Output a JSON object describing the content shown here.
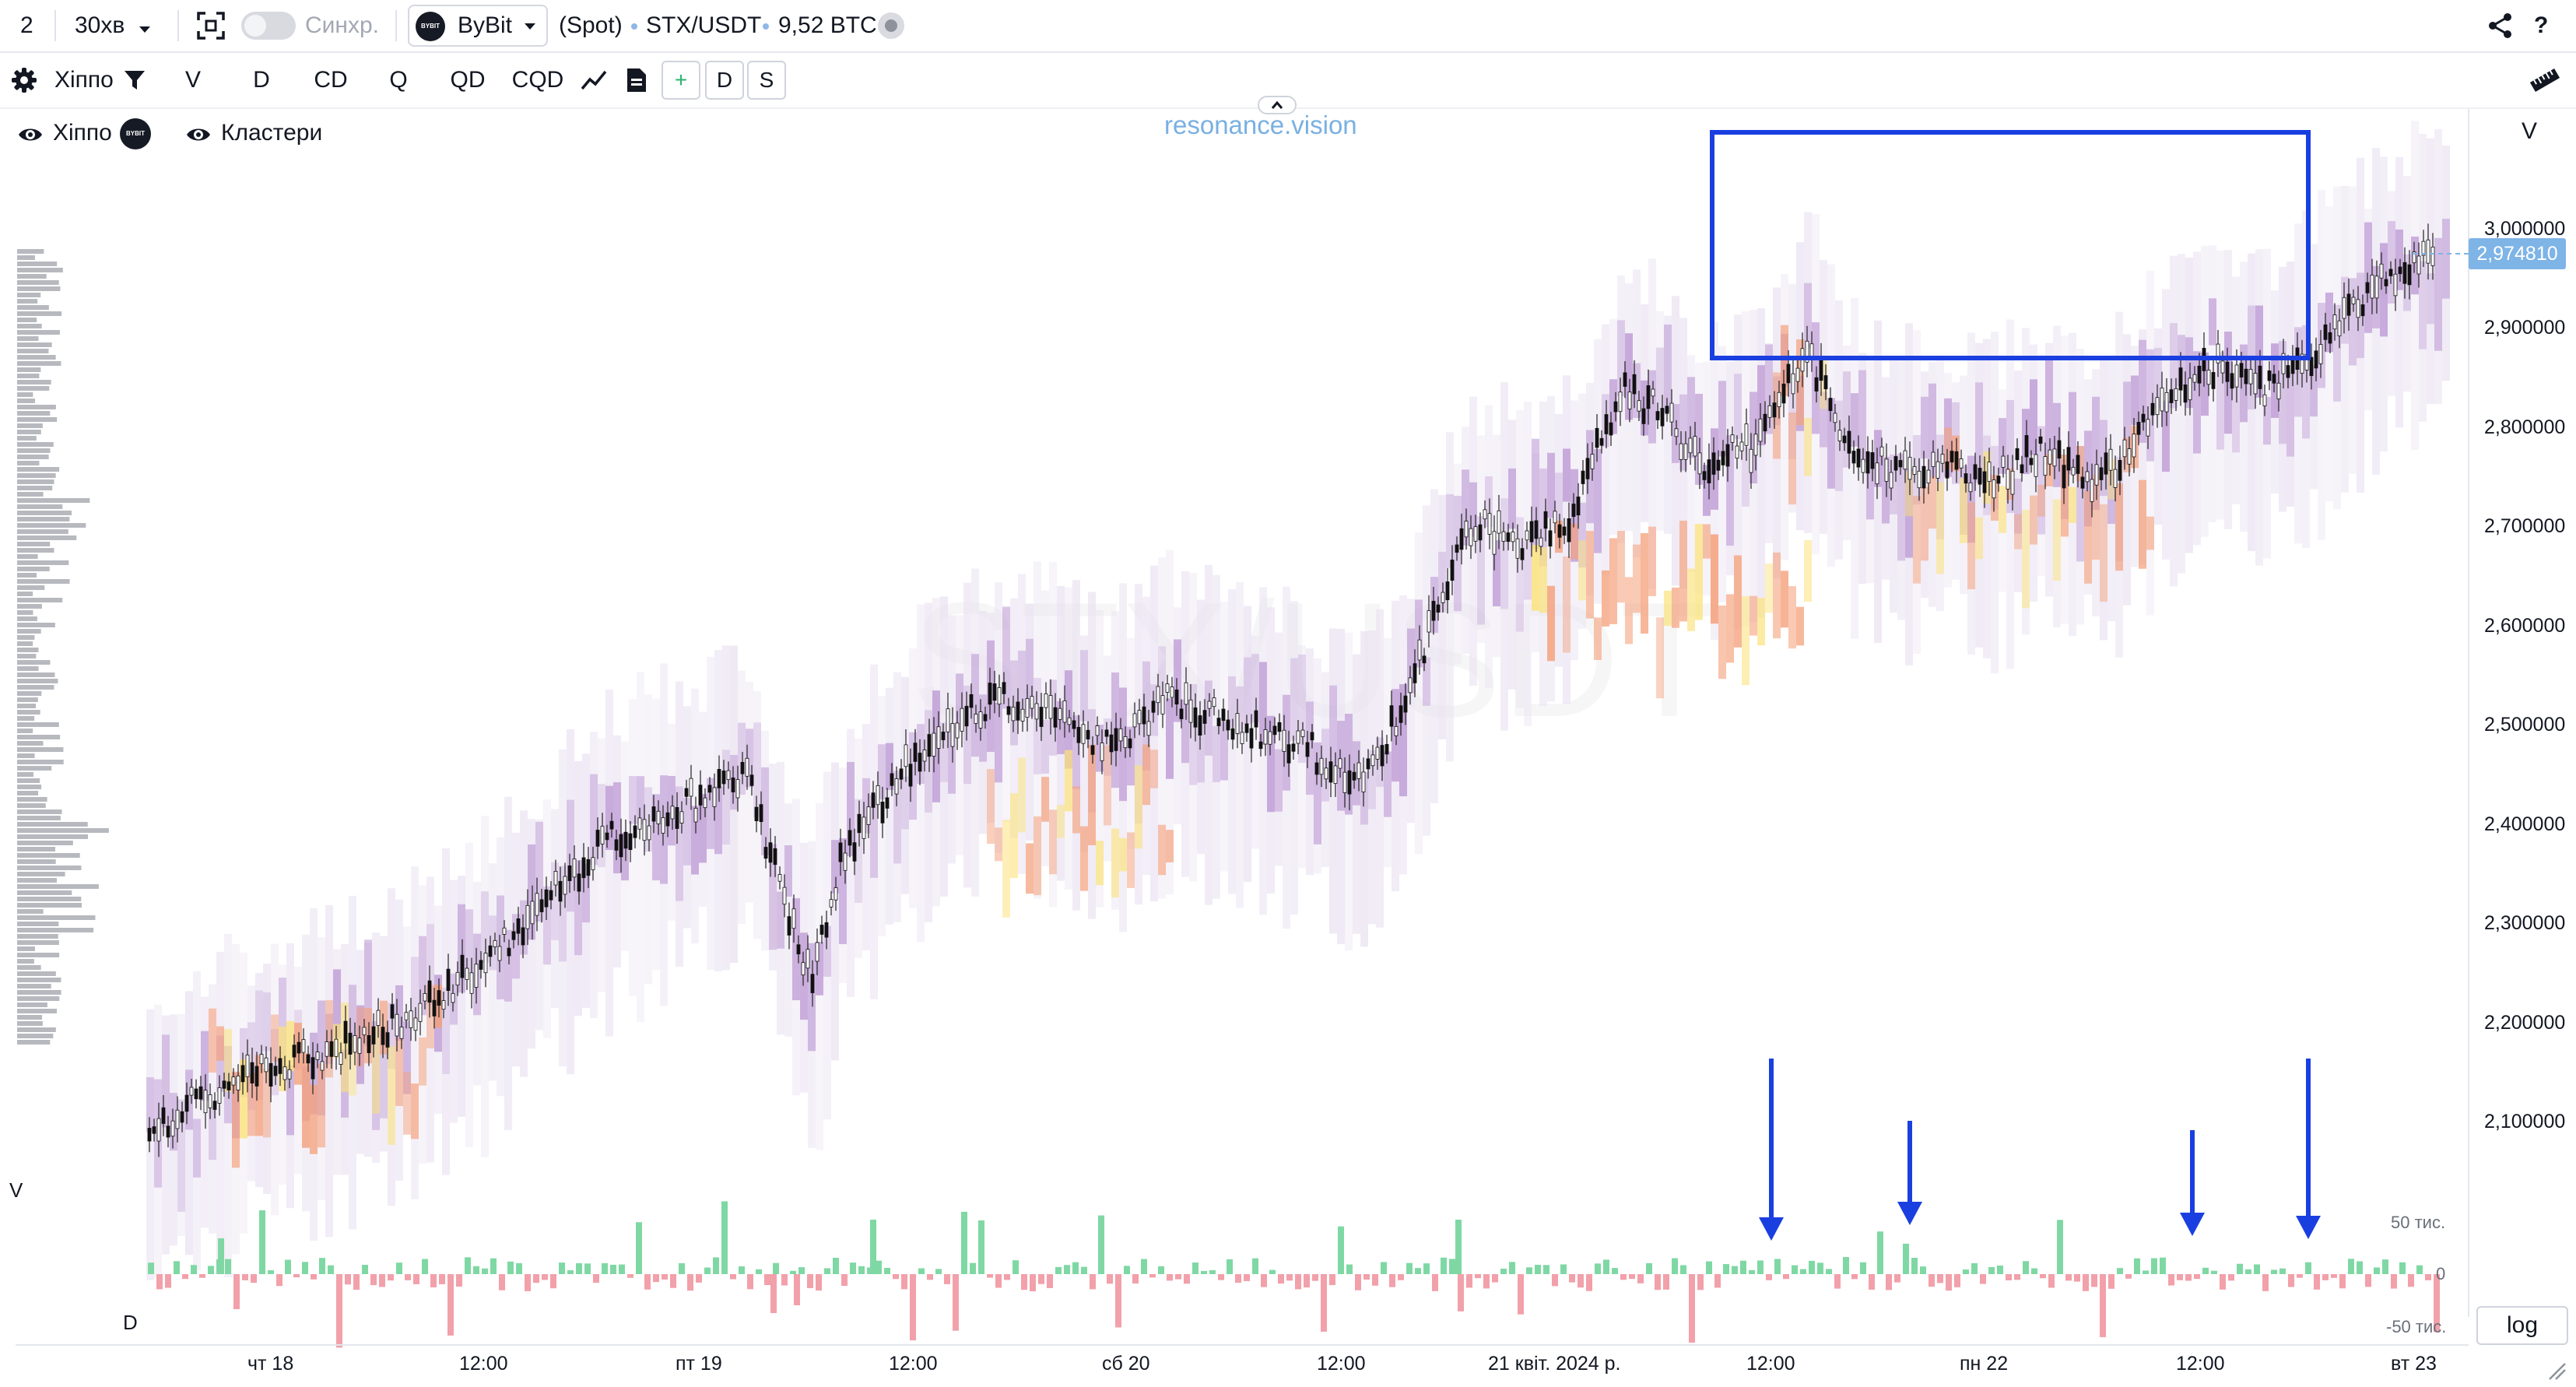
{
  "topbar": {
    "layout_count": "2",
    "interval": "30хв",
    "sync_label": "Синхр.",
    "exchange": "ByBit",
    "exchange_badge": "BYBIT",
    "market": "(Spot)",
    "symbol": "STX/USDT",
    "volume": "9,52 BTC",
    "help": "?"
  },
  "toolbar": {
    "indicator_name": "Хіппо",
    "buttons": [
      "V",
      "D",
      "CD",
      "Q",
      "QD",
      "CQD"
    ],
    "add_label": "+",
    "d_label": "D",
    "s_label": "S"
  },
  "overlay": {
    "indicator_name": "Хіппо",
    "clusters_label": "Кластери",
    "watermark": "resonance.vision",
    "symbol_watermark": "STX/USDT",
    "v_pane_label": "V",
    "d_pane_label": "D",
    "price_axis_label": "V"
  },
  "price_axis": {
    "ticks": [
      "3,000000",
      "2,900000",
      "2,800000",
      "2,700000",
      "2,600000",
      "2,500000",
      "2,400000",
      "2,300000",
      "2,200000",
      "2,100000"
    ],
    "current_price": "2,974810"
  },
  "volume_axis": {
    "ticks": [
      "50 тис.",
      "0",
      "-50 тис."
    ]
  },
  "time_axis": {
    "ticks": [
      "чт 18",
      "12:00",
      "пт 19",
      "12:00",
      "сб 20",
      "12:00",
      "21 квіт. 2024 р.",
      "12:00",
      "пн 22",
      "12:00",
      "вт 23"
    ]
  },
  "log_button": "log",
  "colors": {
    "accent": "#2962ff",
    "annotation_blue": "#1a3fe0",
    "volume_up": "#7fd8a4",
    "volume_down": "#f2a0aa",
    "heat_low": "#e8e0f0",
    "heat_mid": "#b48ccf",
    "heat_high": "#f4a07a",
    "heat_peak": "#fbe27a",
    "price_tag": "#7eb4e6"
  },
  "icons": [
    "gear-icon",
    "funnel-icon",
    "line-chart-icon",
    "document-icon",
    "eye-icon",
    "share-icon",
    "ruler-icon",
    "chevron-up-icon",
    "fullscreen-icon",
    "dropdown-caret-icon",
    "resize-icon"
  ]
}
